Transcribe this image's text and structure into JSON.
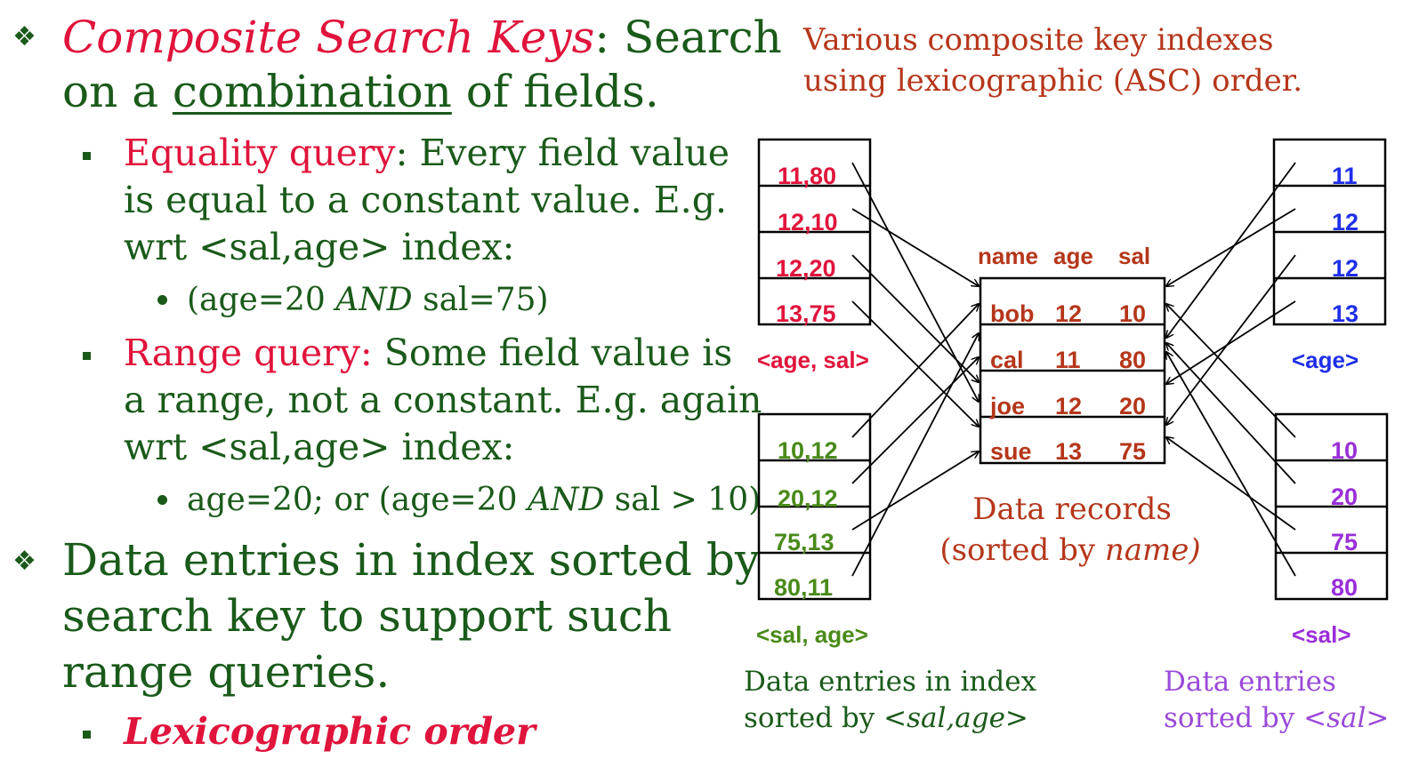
{
  "left": {
    "bullet1": {
      "title": "Composite Search Keys",
      "title_rest": ": Search",
      "line2_prefix": "on a ",
      "line2_underlined": "combination",
      "line2_suffix": " of fields."
    },
    "equality": {
      "label": "Equality query",
      "text1": ": Every field value",
      "text2": "is equal to a constant value. E.g.",
      "text3": "wrt <sal,age> index:",
      "example_pre": "(age=20 ",
      "example_and": "AND",
      "example_post": " sal=75)"
    },
    "range": {
      "label": "Range query:",
      "text1": " Some field value is",
      "text2": "a range, not a constant. E.g. again",
      "text3": "wrt <sal,age> index:",
      "example_pre": "age=20; or (age=20 ",
      "example_and": "AND",
      "example_post": " sal > 10)"
    },
    "bullet2": {
      "line1": "Data entries in index sorted by",
      "line2": "search key to support such",
      "line3": "range queries."
    },
    "lexico": "Lexicographic order"
  },
  "diagram": {
    "top_note": [
      "Various composite key indexes",
      "using lexicographic (ASC) order."
    ],
    "age_sal_index": {
      "entries": [
        "11,80",
        "12,10",
        "12,20",
        "13,75"
      ],
      "label": "<age, sal>",
      "color": "#e0143c"
    },
    "sal_age_index": {
      "entries": [
        "10,12",
        "20,12",
        "75,13",
        "80,11"
      ],
      "label": "<sal, age>",
      "color": "#4a8a1a"
    },
    "age_index": {
      "entries": [
        "11",
        "12",
        "12",
        "13"
      ],
      "label": "<age>",
      "color": "#1f2fe8"
    },
    "sal_index": {
      "entries": [
        "10",
        "20",
        "75",
        "80"
      ],
      "label": "<sal>",
      "color": "#9a2fd8"
    },
    "records": {
      "headers": [
        "name",
        "age",
        "sal"
      ],
      "rows": [
        [
          "bob",
          "12",
          "10"
        ],
        [
          "cal",
          "11",
          "80"
        ],
        [
          "joe",
          "12",
          "20"
        ],
        [
          "sue",
          "13",
          "75"
        ]
      ],
      "color": "#b5361a",
      "caption1": "Data records",
      "caption2_pre": "(sorted by ",
      "caption2_italic": "name)"
    },
    "sal_age_caption": {
      "line1": "Data entries in index",
      "line2_pre": "sorted by ",
      "line2_italic": "<sal,age>"
    },
    "sal_caption": {
      "line1": "Data entries",
      "line2_pre": "sorted by ",
      "line2_italic": "<sal>"
    },
    "colors": {
      "ink": "#1a5a1a",
      "accent_red": "#e0143c",
      "caption_red": "#b5361a",
      "caption_purple": "#9a4ad8"
    }
  }
}
